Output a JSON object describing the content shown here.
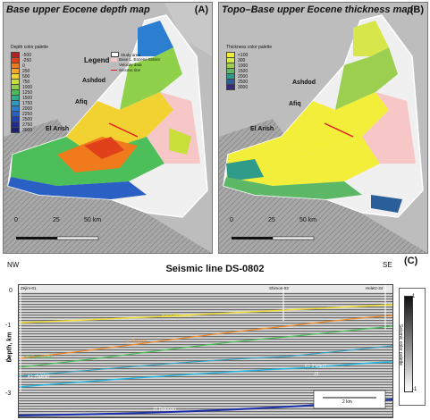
{
  "panel_a": {
    "title": "Base upper Eocene depth map",
    "letter": "(A)",
    "legend_title": "Legend",
    "palette_title": "Depth color palette",
    "palette": [
      {
        "label": "-500",
        "color": "#b22222"
      },
      {
        "label": "-250",
        "color": "#e0401a"
      },
      {
        "label": "0",
        "color": "#f07a1c"
      },
      {
        "label": "250",
        "color": "#f5a623"
      },
      {
        "label": "500",
        "color": "#f2d230"
      },
      {
        "label": "750",
        "color": "#c9df3a"
      },
      {
        "label": "1000",
        "color": "#8fd14a"
      },
      {
        "label": "1250",
        "color": "#4cbf5a"
      },
      {
        "label": "1500",
        "color": "#2fae8e"
      },
      {
        "label": "1750",
        "color": "#2a9bc0"
      },
      {
        "label": "2000",
        "color": "#2c7fd0"
      },
      {
        "label": "2250",
        "color": "#2a5fc4"
      },
      {
        "label": "2500",
        "color": "#243fae"
      },
      {
        "label": "2750",
        "color": "#1f2a8e"
      },
      {
        "label": "3000",
        "color": "#1a1f6e"
      }
    ],
    "legend_items": [
      {
        "label": "Study area",
        "color": "#ffffff"
      },
      {
        "label": "Base L. Eocene Extent",
        "color": "#f7c6c6"
      },
      {
        "label": "Velocity data",
        "color": "#bbbbbb"
      },
      {
        "label": "Seismic line",
        "color": "#e02020"
      }
    ],
    "cities": {
      "ashdod": "Ashdod",
      "afiq": "Afiq",
      "el_arish": "El Arish"
    },
    "scale": {
      "zero": "0",
      "mid": "25",
      "end": "50 km"
    }
  },
  "panel_b": {
    "title": "Topo–Base upper Eocene thickness map",
    "letter": "(B)",
    "palette_title": "Thickness color palette",
    "palette": [
      {
        "label": "<100",
        "color": "#f2ee3a"
      },
      {
        "label": "300",
        "color": "#d7e64a"
      },
      {
        "label": "1000",
        "color": "#9ccf50"
      },
      {
        "label": "1500",
        "color": "#5cb866"
      },
      {
        "label": "2000",
        "color": "#2f9c8a"
      },
      {
        "label": "2500",
        "color": "#2b5f9c"
      },
      {
        "label": "3000",
        "color": "#3a2a7a"
      }
    ],
    "cities": {
      "ashdod": "Ashdod",
      "afiq": "Afiq",
      "el_arish": "El Arish"
    },
    "scale": {
      "zero": "0",
      "mid": "25",
      "end": "50 km"
    }
  },
  "panel_c": {
    "letter": "(C)",
    "title": "Seismic line DS-0802",
    "nw": "NW",
    "se": "SE",
    "ylabel": "Depth, km",
    "yticks": [
      "0",
      "-1",
      "-2",
      "-3"
    ],
    "wells": [
      "Zejim-01",
      "Shimon-03",
      "Heletz-34"
    ],
    "horizons": [
      "Base Pliocene",
      "U. Eocene",
      "K2 Campanian",
      "K1 (Talme)",
      "K1 (Helez)",
      "J2 Bajocian",
      "J3"
    ],
    "scalebar": "2 km",
    "colorbar_label": "Seismic color palette",
    "colorbar_top": "1",
    "colorbar_bottom": "-1"
  }
}
